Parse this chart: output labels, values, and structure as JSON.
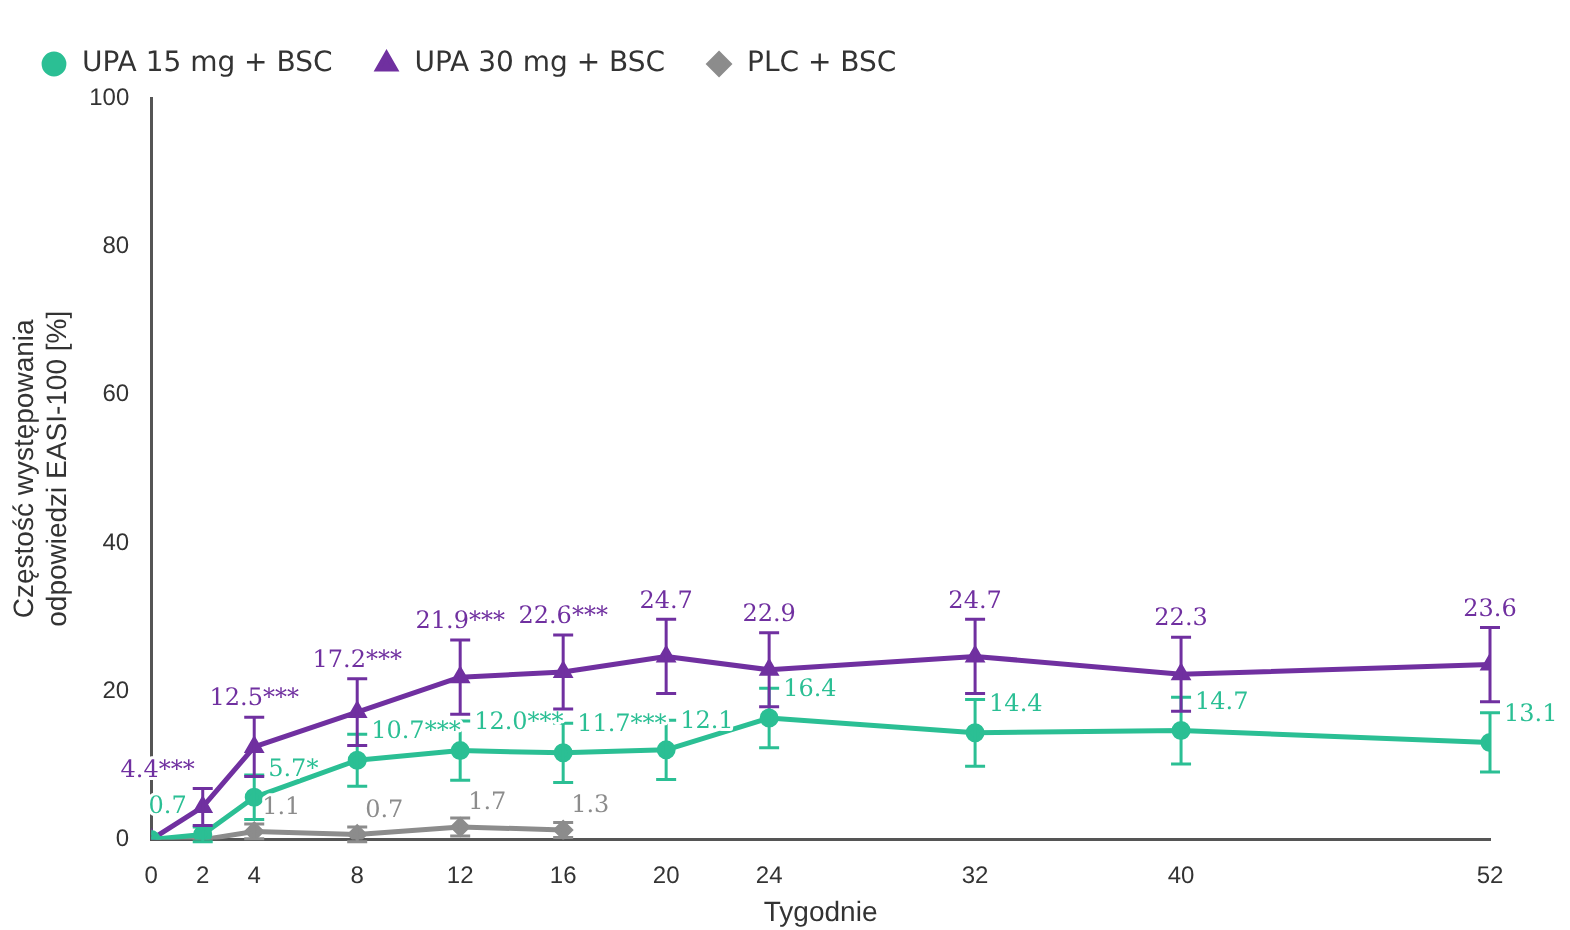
{
  "chart_data": {
    "type": "line",
    "xlabel": "Tygodnie",
    "ylabel": "Częstość występowania\nodpowiedzi EASI-100 [%]",
    "xlim": [
      0,
      52
    ],
    "xticks": [
      0,
      2,
      4,
      8,
      12,
      16,
      20,
      24,
      32,
      40,
      52
    ],
    "ylim": [
      0,
      100
    ],
    "yticks": [
      0,
      20,
      40,
      60,
      80,
      100
    ],
    "grid": false,
    "legend": "top",
    "series": [
      {
        "name": "UPA 15 mg + BSC",
        "color": "#2bbf94",
        "marker": "circle",
        "x": [
          0,
          2,
          4,
          8,
          12,
          16,
          20,
          24,
          32,
          40,
          52
        ],
        "values": [
          0,
          0.7,
          5.7,
          10.7,
          12.0,
          11.7,
          12.1,
          16.4,
          14.4,
          14.7,
          13.1
        ],
        "errors": [
          null,
          1,
          3,
          3.5,
          4,
          4,
          4,
          4,
          4.5,
          4.5,
          4
        ],
        "value_labels": [
          null,
          "0.7",
          "5.7*",
          "10.7***",
          "12.0***",
          "11.7***",
          "12.1",
          "16.4",
          "14.4",
          "14.7",
          "13.1"
        ]
      },
      {
        "name": "UPA 30 mg + BSC",
        "color": "#7030a0",
        "marker": "triangle",
        "x": [
          0,
          2,
          4,
          8,
          12,
          16,
          20,
          24,
          32,
          40,
          52
        ],
        "values": [
          0,
          4.4,
          12.5,
          17.2,
          21.9,
          22.6,
          24.7,
          22.9,
          24.7,
          22.3,
          23.6
        ],
        "errors": [
          null,
          2.5,
          4,
          4.5,
          5,
          5,
          5,
          5,
          5,
          5,
          5
        ],
        "value_labels": [
          null,
          "4.4***",
          "12.5***",
          "17.2***",
          "21.9***",
          "22.6***",
          "24.7",
          "22.9",
          "24.7",
          "22.3",
          "23.6"
        ]
      },
      {
        "name": "PLC + BSC",
        "color": "#8c8c8c",
        "marker": "diamond",
        "x": [
          0,
          2,
          4,
          8,
          12,
          16
        ],
        "values": [
          0,
          0,
          1.1,
          0.7,
          1.7,
          1.3
        ],
        "errors": [
          null,
          null,
          1,
          1,
          1.2,
          1
        ],
        "value_labels": [
          null,
          null,
          "1.1",
          "0.7",
          "1.7",
          "1.3"
        ]
      }
    ]
  }
}
